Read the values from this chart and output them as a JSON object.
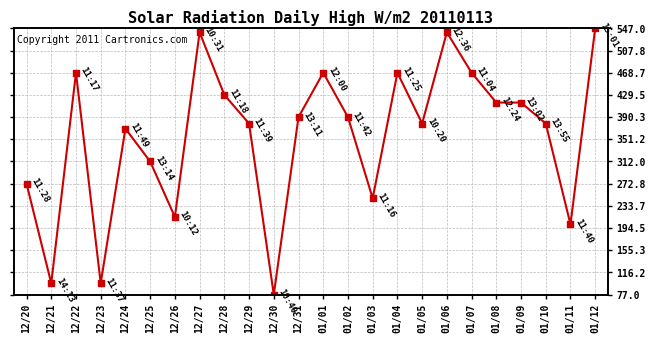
{
  "title": "Solar Radiation Daily High W/m2 20110113",
  "copyright": "Copyright 2011 Cartronics.com",
  "dates": [
    "12/20",
    "12/21",
    "12/22",
    "12/23",
    "12/24",
    "12/25",
    "12/26",
    "12/27",
    "12/28",
    "12/29",
    "12/30",
    "12/31",
    "01/01",
    "01/02",
    "01/03",
    "01/04",
    "01/05",
    "01/06",
    "01/07",
    "01/08",
    "01/09",
    "01/10",
    "01/11",
    "01/12"
  ],
  "values": [
    272.8,
    97.0,
    468.7,
    97.0,
    370.0,
    312.0,
    214.0,
    540.0,
    429.5,
    379.0,
    77.0,
    390.3,
    468.7,
    390.3,
    247.0,
    468.7,
    379.0,
    540.0,
    468.7,
    416.0,
    416.0,
    379.0,
    201.0,
    547.0
  ],
  "labels": [
    "11:28",
    "14:13",
    "11:17",
    "11:37",
    "11:49",
    "13:14",
    "10:12",
    "10:31",
    "11:18",
    "11:39",
    "10:40",
    "13:11",
    "12:00",
    "11:42",
    "11:16",
    "11:25",
    "10:20",
    "12:36",
    "11:04",
    "12:24",
    "13:02",
    "13:55",
    "11:40",
    "15:01"
  ],
  "yticks": [
    77.0,
    116.2,
    155.3,
    194.5,
    233.7,
    272.8,
    312.0,
    351.2,
    390.3,
    429.5,
    468.7,
    507.8,
    547.0
  ],
  "ymin": 77.0,
  "ymax": 547.0,
  "line_color": "#cc0000",
  "marker_color": "#cc0000",
  "bg_color": "#ffffff",
  "grid_color": "#bbbbbb",
  "title_fontsize": 11,
  "label_fontsize": 6.5,
  "copyright_fontsize": 7,
  "tick_fontsize": 7
}
